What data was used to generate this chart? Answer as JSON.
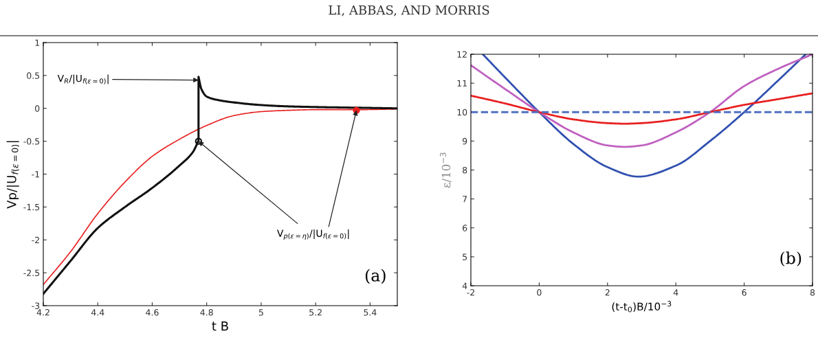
{
  "chart_data": [
    {
      "type": "line",
      "xlabel": "t B",
      "ylabel": "Vp/|U$_{f(ε=0)}$|",
      "xlim": [
        4.2,
        5.5
      ],
      "ylim": [
        -3,
        1
      ],
      "xticks": [
        4.2,
        4.4,
        4.6,
        4.8,
        5,
        5.2,
        5.4
      ],
      "yticks": [
        -3,
        -2.5,
        -2,
        -1.5,
        -1,
        -0.5,
        0,
        0.5,
        1
      ],
      "grid": false,
      "series": [
        {
          "type": "line",
          "color": "#e82020",
          "x": [
            4.2,
            4.3,
            4.4,
            4.5,
            4.6,
            4.7,
            4.8,
            4.9,
            5.0,
            5.1,
            5.2,
            5.35,
            5.5
          ],
          "values": [
            -2.68,
            -2.18,
            -1.6,
            -1.12,
            -0.73,
            -0.47,
            -0.26,
            -0.11,
            -0.05,
            -0.03,
            -0.02,
            -0.02,
            -0.01
          ]
        },
        {
          "type": "line",
          "color": "#111111",
          "x": [
            4.2,
            4.3,
            4.4,
            4.5,
            4.6,
            4.7,
            4.75,
            4.77,
            4.77,
            4.78,
            4.8,
            4.85,
            4.9,
            5.0,
            5.1,
            5.2,
            5.35,
            5.5
          ],
          "values": [
            -2.82,
            -2.32,
            -1.82,
            -1.5,
            -1.21,
            -0.87,
            -0.66,
            -0.49,
            0.48,
            0.3,
            0.18,
            0.12,
            0.09,
            0.05,
            0.03,
            0.02,
            0.01,
            0
          ]
        },
        {
          "type": "scatter",
          "marker": "circle",
          "color": "#111111",
          "x": [
            4.77
          ],
          "values": [
            -0.5
          ]
        },
        {
          "type": "scatter",
          "marker": "circle",
          "color": "#e82020",
          "x": [
            5.35
          ],
          "values": [
            -0.03
          ]
        }
      ],
      "annotations": [
        "LI, ABBAS, AND MORRIS",
        {
          "text": "V$_{R}$/|U$_{f(ε=0)}$|",
          "x": 4.77,
          "y": 0.43
        },
        {
          "text": "V$_{p(ε=η)}$/|U$_{f(ε=0)}$|",
          "x": 5.35,
          "y": -0.03
        },
        "(a)"
      ]
    },
    {
      "type": "line",
      "xlabel": "(t-t$_{0}$)B/10$^{−3}$",
      "ylabel": "ε/10$^{−3}$",
      "xlim": [
        -2,
        8
      ],
      "ylim": [
        4,
        12
      ],
      "xticks": [
        -2,
        0,
        2,
        4,
        6,
        8
      ],
      "yticks": [
        4,
        5,
        6,
        7,
        8,
        9,
        10,
        11,
        12
      ],
      "grid": false,
      "series": [
        {
          "color": "#3050b0",
          "x": [
            -1.65,
            -1,
            0,
            1,
            2,
            2.9,
            4,
            5,
            6,
            7,
            7.8
          ],
          "values": [
            12,
            11.2,
            10,
            8.9,
            8.1,
            7.77,
            8.15,
            9.0,
            10,
            11.1,
            12
          ]
        },
        {
          "color": "#c060c0",
          "x": [
            -2,
            -1,
            0,
            1,
            2,
            2.5,
            3,
            4,
            5,
            6,
            7,
            8
          ],
          "values": [
            11.62,
            10.8,
            10,
            9.3,
            8.85,
            8.8,
            8.85,
            9.3,
            10,
            10.9,
            11.5,
            12
          ]
        },
        {
          "color": "#e82020",
          "x": [
            -2,
            -1,
            0,
            1,
            2,
            2.5,
            3,
            4,
            5,
            6,
            7,
            8
          ],
          "values": [
            10.57,
            10.3,
            10,
            9.75,
            9.62,
            9.6,
            9.62,
            9.75,
            10,
            10.25,
            10.45,
            10.65
          ]
        }
      ],
      "ref_lines": [
        {
          "axis": "y",
          "value": 10,
          "color": "#5070c0",
          "line_style": "dashed"
        }
      ],
      "annotations": [
        "(b)"
      ]
    }
  ]
}
